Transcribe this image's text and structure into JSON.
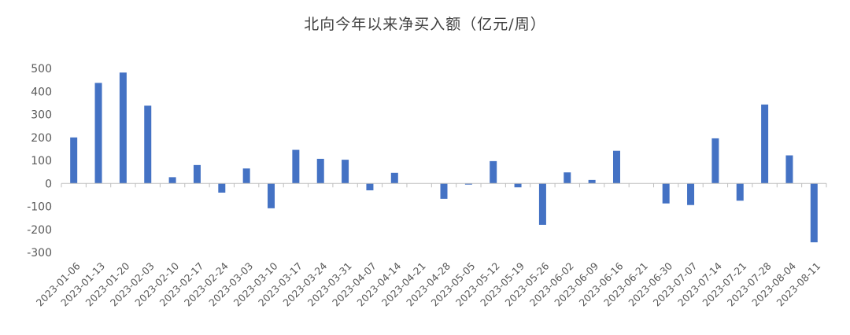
{
  "chart_data": {
    "type": "bar",
    "title": "北向今年以来净买入额（亿元/周）",
    "xlabel": "",
    "ylabel": "",
    "ylim": [
      -300,
      500
    ],
    "yticks": [
      "500",
      "400",
      "300",
      "200",
      "100",
      "0",
      "-100",
      "-200",
      "-300"
    ],
    "ytick_values": [
      500,
      400,
      300,
      200,
      100,
      0,
      -100,
      -200,
      -300
    ],
    "grid": false,
    "legend": "none",
    "bar_color": "#4472C4",
    "categories": [
      "2023-01-06",
      "2023-01-13",
      "2023-01-20",
      "2023-02-03",
      "2023-02-10",
      "2023-02-17",
      "2023-02-24",
      "2023-03-03",
      "2023-03-10",
      "2023-03-17",
      "2023-03-24",
      "2023-03-31",
      "2023-04-07",
      "2023-04-14",
      "2023-04-21",
      "2023-04-28",
      "2023-05-05",
      "2023-05-12",
      "2023-05-19",
      "2023-05-26",
      "2023-06-02",
      "2023-06-09",
      "2023-06-16",
      "2023-06-21",
      "2023-06-30",
      "2023-07-07",
      "2023-07-14",
      "2023-07-21",
      "2023-07-28",
      "2023-08-04",
      "2023-08-11"
    ],
    "values": [
      200,
      437,
      482,
      338,
      27,
      80,
      -40,
      65,
      -108,
      146,
      107,
      103,
      -30,
      46,
      0,
      -67,
      -5,
      97,
      -17,
      -180,
      48,
      15,
      142,
      0,
      -87,
      -94,
      196,
      -75,
      343,
      122,
      -256
    ]
  }
}
